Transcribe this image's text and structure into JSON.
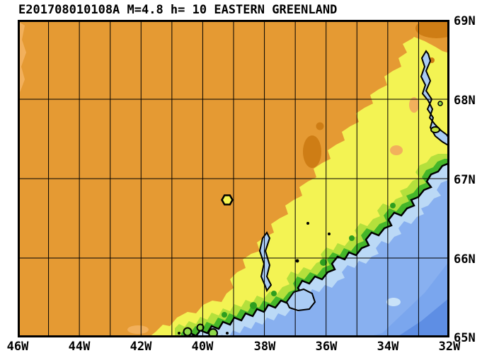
{
  "title": {
    "text": "E201708010108A M=4.8 h= 10 EASTERN GREENLAND"
  },
  "event": {
    "id": "E201708010108A",
    "magnitude_label": "M=4.8",
    "depth_label": "h= 10",
    "region": "EASTERN GREENLAND"
  },
  "map": {
    "x_axis": {
      "labels": [
        "46W",
        "44W",
        "42W",
        "40W",
        "38W",
        "36W",
        "34W",
        "32W"
      ],
      "min": "46W",
      "max": "32W",
      "label_interval_deg": 2,
      "grid_interval_deg": 1
    },
    "y_axis": {
      "labels": [
        "69N",
        "68N",
        "67N",
        "66N",
        "65N"
      ],
      "min": "65N",
      "max": "69N",
      "label_interval_deg": 1,
      "grid_interval_deg": 1
    },
    "grid": {
      "lon_line_count": 13,
      "lat_line_count": 3
    },
    "epicenter": {
      "symbol": "hexagon",
      "approx_lon": "39.2W",
      "approx_lat": "66.7N"
    }
  },
  "palette": {
    "land": "#E59A33",
    "land_high": "#CE7D15",
    "land_low": "#F2B05C",
    "coast_yellow": "#F3F353",
    "coast_yellow_green": "#B4E03C",
    "coast_green": "#44B62A",
    "coast_dark_green": "#2E9E1F",
    "shore_shallow": "#BBD9F6",
    "fjord_water": "#AACCF4",
    "island_green": "#8FD94A",
    "island_yellow_green": "#BEE23C",
    "ocean": "#88B0F0",
    "ocean_mid": "#7AA6EE",
    "ocean_deep": "#5E8EE4",
    "ocean_light_spot": "#C9E2F8",
    "coastline": "#000000",
    "grid_line": "#000000",
    "marker_fill": "#F5F551",
    "text": "#000000"
  }
}
